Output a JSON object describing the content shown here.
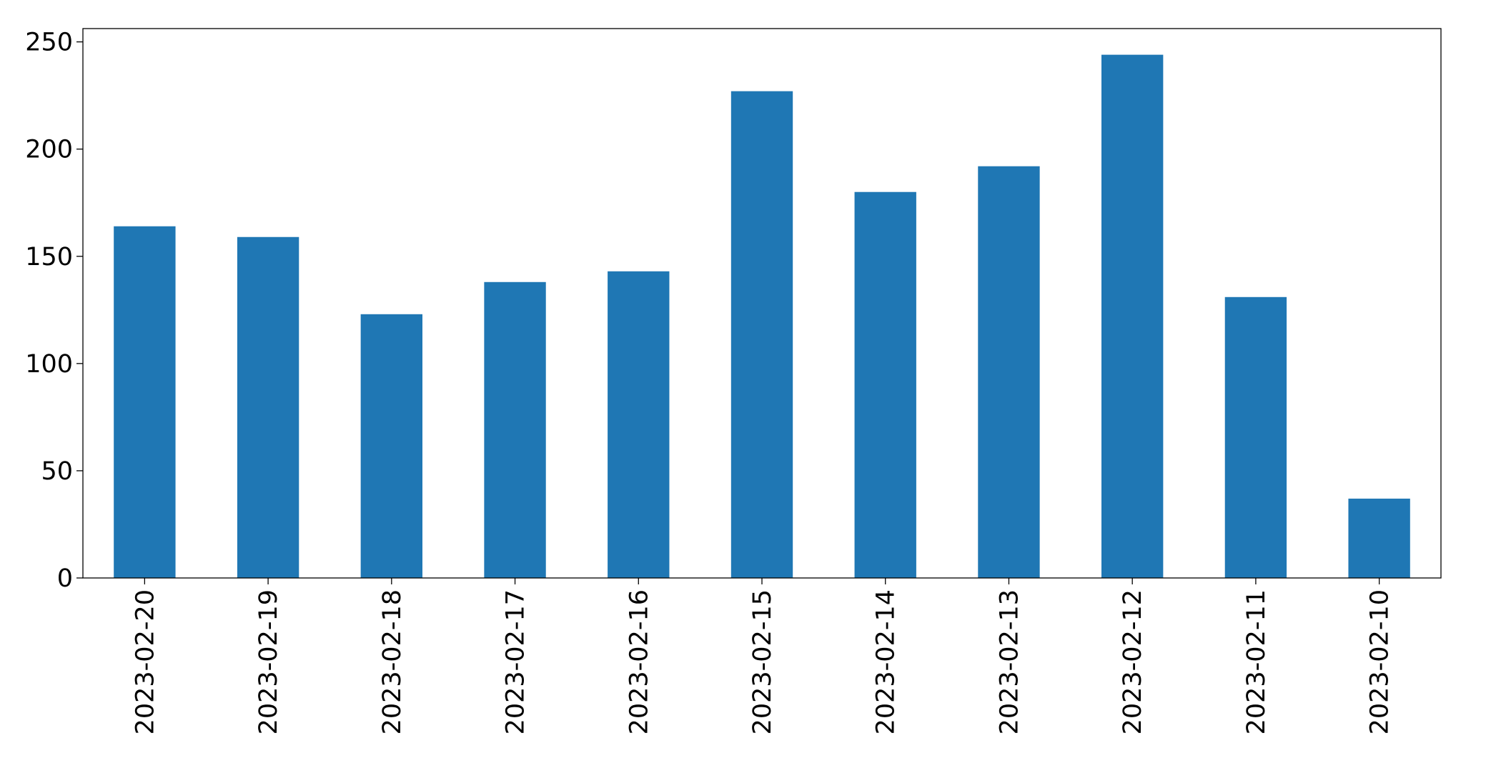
{
  "chart_data": {
    "type": "bar",
    "categories": [
      "2023-02-20",
      "2023-02-19",
      "2023-02-18",
      "2023-02-17",
      "2023-02-16",
      "2023-02-15",
      "2023-02-14",
      "2023-02-13",
      "2023-02-12",
      "2023-02-11",
      "2023-02-10"
    ],
    "values": [
      164,
      159,
      123,
      138,
      143,
      227,
      180,
      192,
      244,
      131,
      37
    ],
    "color": "#1f77b4",
    "ylim": [
      0,
      256.2
    ],
    "yticks": [
      0,
      50,
      100,
      150,
      200,
      250
    ],
    "grid": false
  }
}
